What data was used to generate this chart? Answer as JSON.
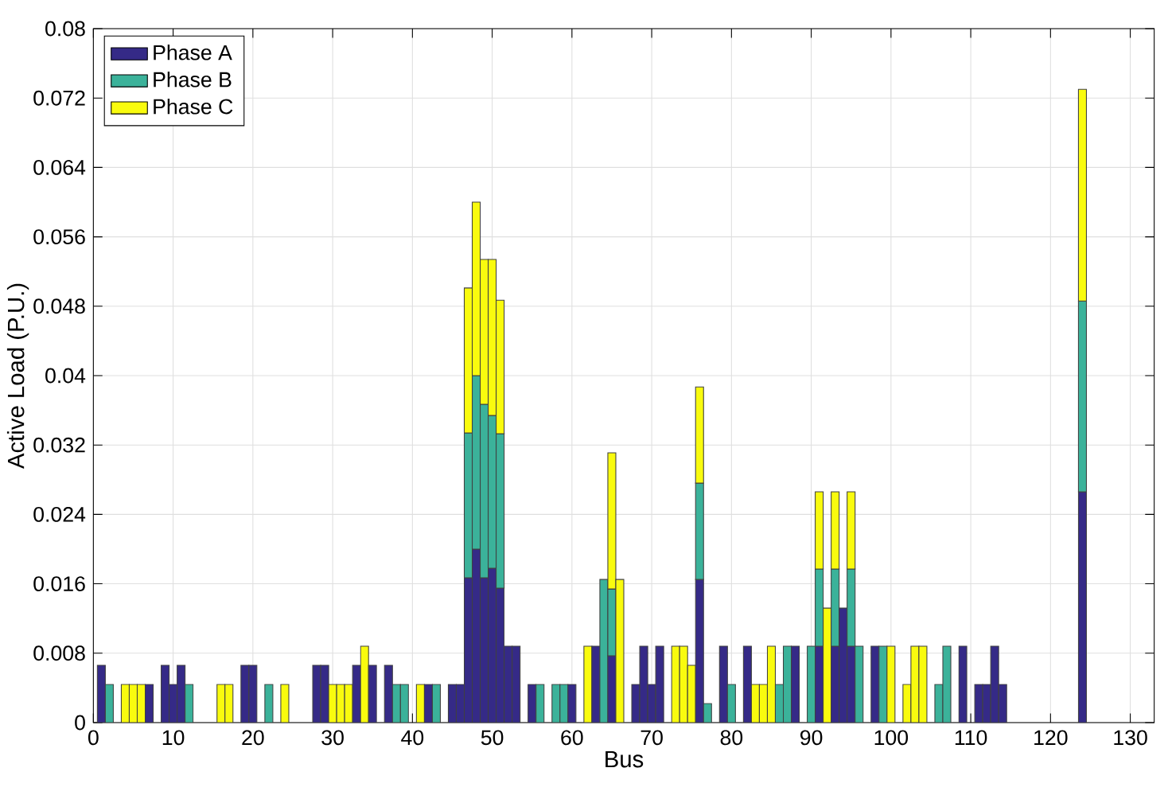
{
  "chart_data": {
    "type": "bar",
    "stacked": true,
    "xlabel": "Bus",
    "ylabel": "Active Load (P.U.)",
    "x": [
      1,
      2,
      4,
      5,
      6,
      7,
      9,
      10,
      11,
      12,
      16,
      17,
      19,
      20,
      22,
      24,
      28,
      29,
      30,
      31,
      32,
      33,
      34,
      35,
      37,
      38,
      39,
      41,
      42,
      43,
      45,
      46,
      47,
      48,
      49,
      50,
      51,
      52,
      53,
      55,
      56,
      58,
      59,
      60,
      62,
      63,
      64,
      65,
      66,
      68,
      69,
      70,
      71,
      73,
      74,
      75,
      76,
      77,
      79,
      80,
      82,
      83,
      84,
      85,
      86,
      87,
      88,
      90,
      91,
      92,
      93,
      94,
      95,
      96,
      98,
      99,
      100,
      102,
      103,
      104,
      106,
      107,
      109,
      111,
      112,
      113,
      114,
      124
    ],
    "series": [
      {
        "name": "Phase A",
        "color": "#352a87",
        "values": [
          0.0066,
          null,
          null,
          null,
          null,
          0.0044,
          0.0066,
          0.0044,
          0.0066,
          null,
          null,
          null,
          0.0066,
          0.0066,
          null,
          null,
          0.0066,
          0.0066,
          null,
          null,
          null,
          0.0066,
          null,
          0.0066,
          0.0066,
          null,
          null,
          null,
          0.0044,
          null,
          0.0044,
          0.0044,
          0.0167,
          0.02,
          0.0167,
          0.0178,
          0.0155,
          0.0088,
          0.0088,
          0.0044,
          null,
          null,
          null,
          0.0044,
          null,
          0.0088,
          null,
          0.0077,
          null,
          0.0044,
          0.0088,
          0.0044,
          0.0088,
          null,
          null,
          null,
          0.0165,
          null,
          0.0088,
          null,
          0.0088,
          null,
          null,
          null,
          null,
          null,
          0.0088,
          null,
          0.0088,
          null,
          0.0088,
          0.0132,
          0.0088,
          null,
          0.0088,
          null,
          null,
          null,
          null,
          null,
          null,
          null,
          0.0088,
          0.0044,
          0.0044,
          0.0088,
          0.0044,
          0.0266
        ]
      },
      {
        "name": "Phase B",
        "color": "#3bb29a",
        "values": [
          null,
          0.0044,
          null,
          null,
          null,
          null,
          null,
          null,
          null,
          0.0044,
          null,
          null,
          null,
          null,
          0.0044,
          null,
          null,
          null,
          null,
          null,
          null,
          null,
          null,
          null,
          null,
          0.0044,
          0.0044,
          null,
          null,
          0.0044,
          null,
          null,
          0.0167,
          0.02,
          0.02,
          0.0176,
          0.0178,
          null,
          null,
          null,
          0.0044,
          0.0044,
          0.0044,
          null,
          null,
          null,
          0.0165,
          0.0077,
          null,
          null,
          null,
          null,
          null,
          null,
          null,
          null,
          0.0111,
          0.0022,
          null,
          0.0044,
          null,
          null,
          null,
          null,
          0.0044,
          0.0088,
          null,
          0.0088,
          0.0089,
          null,
          0.0089,
          null,
          0.0089,
          0.0088,
          null,
          0.0088,
          null,
          null,
          null,
          null,
          0.0044,
          0.0088,
          null,
          null,
          null,
          null,
          null,
          0.022
        ]
      },
      {
        "name": "Phase C",
        "color": "#f9fb0e",
        "values": [
          null,
          null,
          0.0044,
          0.0044,
          0.0044,
          null,
          null,
          null,
          null,
          null,
          0.0044,
          0.0044,
          null,
          null,
          null,
          0.0044,
          null,
          null,
          0.0044,
          0.0044,
          0.0044,
          null,
          0.0088,
          null,
          null,
          null,
          null,
          0.0044,
          null,
          null,
          null,
          null,
          0.0167,
          0.02,
          0.0167,
          0.018,
          0.0154,
          null,
          null,
          null,
          null,
          null,
          null,
          null,
          0.0088,
          null,
          null,
          0.0157,
          0.0165,
          null,
          null,
          null,
          null,
          0.0088,
          0.0088,
          0.0066,
          0.0111,
          null,
          null,
          null,
          null,
          0.0044,
          0.0044,
          0.0088,
          null,
          null,
          null,
          null,
          0.0089,
          0.0132,
          0.0089,
          null,
          0.0089,
          null,
          null,
          null,
          0.0088,
          0.0044,
          0.0088,
          0.0088,
          null,
          null,
          null,
          null,
          null,
          null,
          null,
          0.0244
        ]
      }
    ],
    "xlim": [
      0,
      133
    ],
    "ylim": [
      0,
      0.08
    ],
    "xticks": [
      0,
      10,
      20,
      30,
      40,
      50,
      60,
      70,
      80,
      90,
      100,
      110,
      120,
      130
    ],
    "yticks": [
      0,
      0.008,
      0.016,
      0.024,
      0.032,
      0.04,
      0.048,
      0.056,
      0.064,
      0.072,
      0.08
    ],
    "grid": true,
    "legend": "top left"
  }
}
